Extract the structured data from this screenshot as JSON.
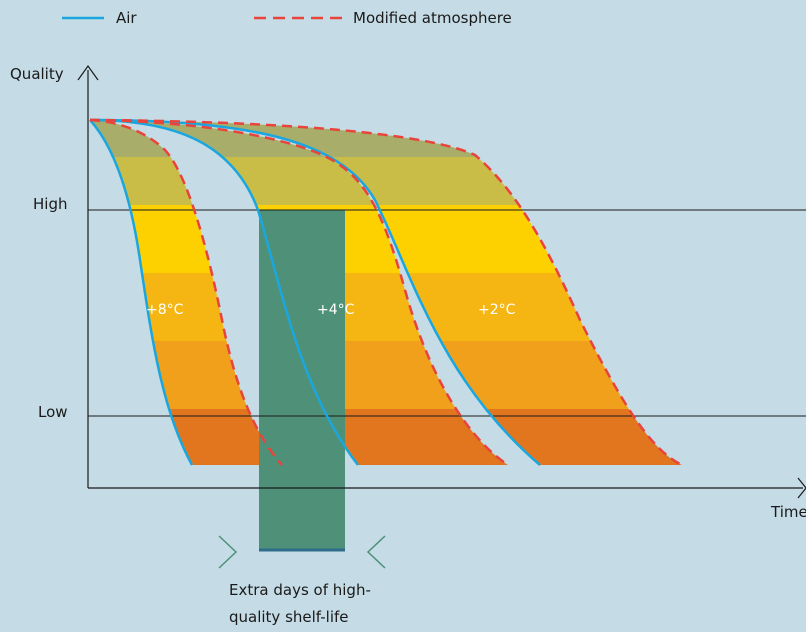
{
  "legend": {
    "air": "Air",
    "modified": "Modified atmosphere"
  },
  "axes": {
    "y_label": "Quality",
    "x_label": "Time",
    "high": "High",
    "low": "Low"
  },
  "temperatures": [
    "+8°C",
    "+4°C",
    "+2°C"
  ],
  "annotation": {
    "line1": "Extra days of high-",
    "line2": "quality shelf-life"
  },
  "colors": {
    "background": "#c5dce6",
    "air_line": "#1aa7e0",
    "modified_line": "#e8443c",
    "extra_days": "#4e9178",
    "band_top": "#a8ad6a",
    "band_2": "#cabd47",
    "band_3": "#fdd000",
    "band_4": "#f5b614",
    "band_5": "#f0a01a",
    "band_6": "#e2761f"
  }
}
